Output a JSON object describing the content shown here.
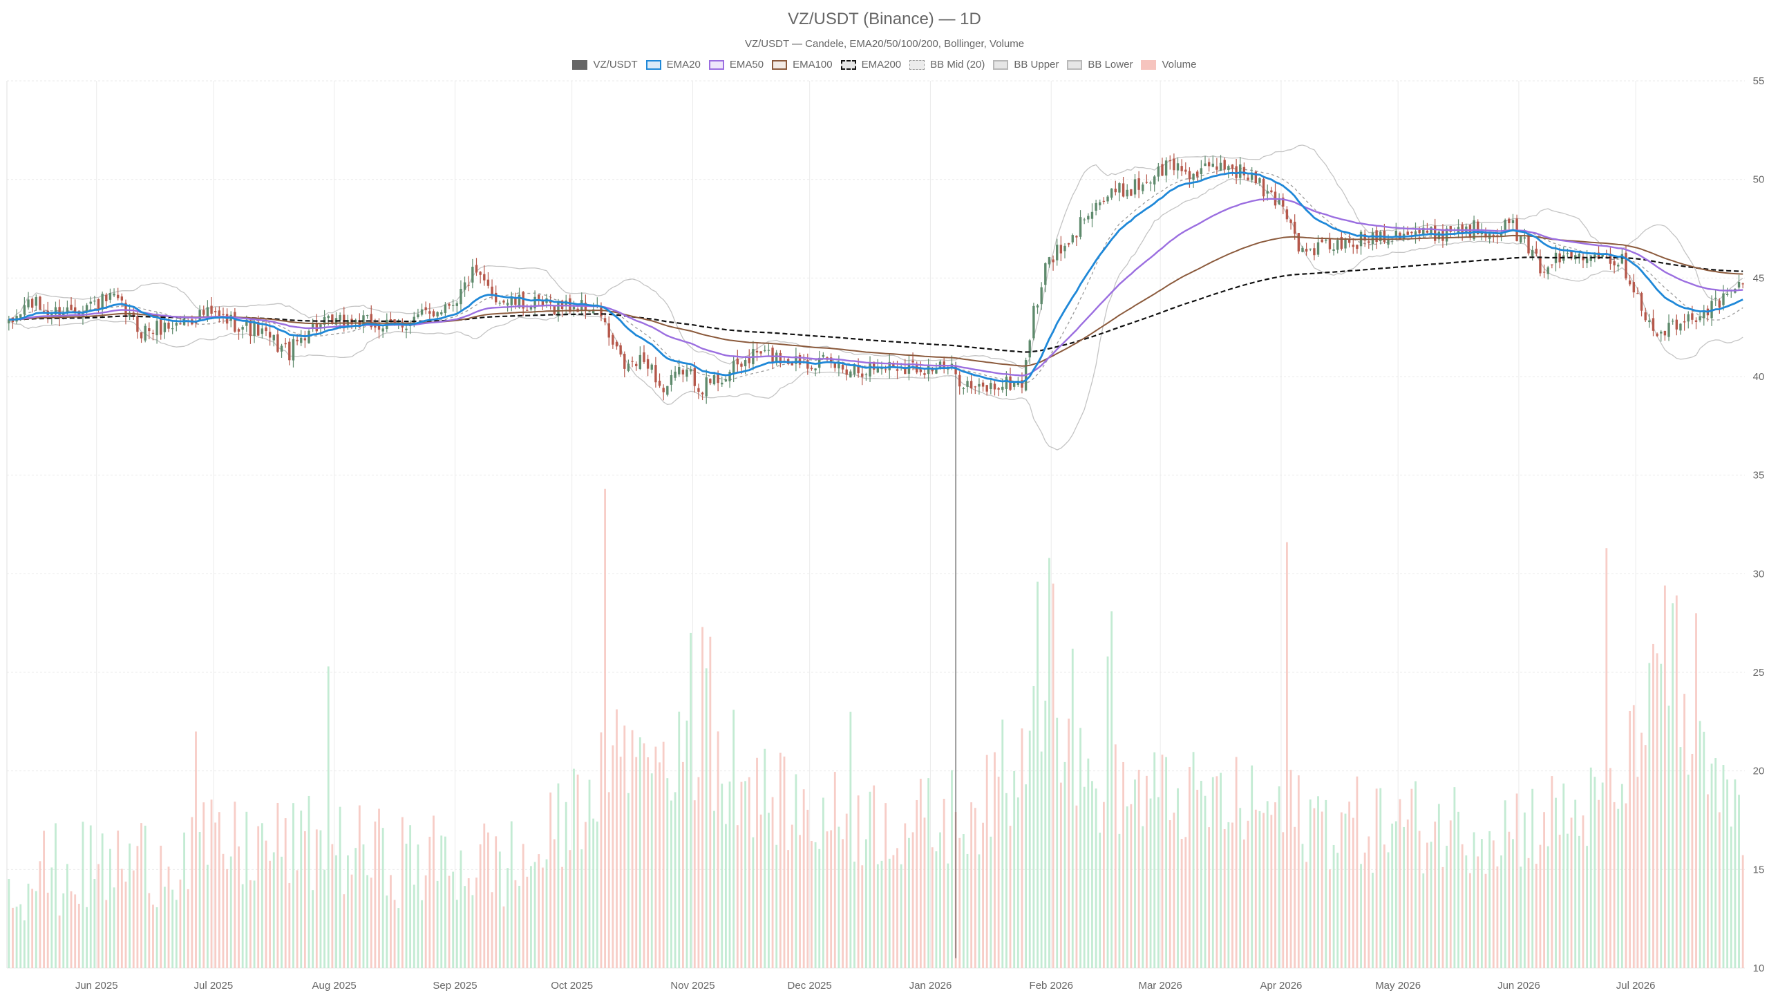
{
  "chart_data": {
    "type": "candlestick",
    "title": "VZ/USDT (Binance) — 1D",
    "subtitle": "VZ/USDT — Candele, EMA20/50/100/200, Bollinger, Volume",
    "y_axis": {
      "min": 10,
      "max": 55,
      "ticks": [
        10,
        15,
        20,
        25,
        30,
        35,
        40,
        45,
        50,
        55
      ],
      "position": "right"
    },
    "x_axis": {
      "start": "2025-05-09",
      "end": "2026-07-28",
      "ticks": [
        {
          "date": "2025-06-01",
          "label": "Jun 2025"
        },
        {
          "date": "2025-07-01",
          "label": "Jul 2025"
        },
        {
          "date": "2025-08-01",
          "label": "Aug 2025"
        },
        {
          "date": "2025-09-01",
          "label": "Sep 2025"
        },
        {
          "date": "2025-10-01",
          "label": "Oct 2025"
        },
        {
          "date": "2025-11-01",
          "label": "Nov 2025"
        },
        {
          "date": "2025-12-01",
          "label": "Dec 2025"
        },
        {
          "date": "2026-01-01",
          "label": "Jan 2026"
        },
        {
          "date": "2026-02-01",
          "label": "Feb 2026"
        },
        {
          "date": "2026-03-01",
          "label": "Mar 2026"
        },
        {
          "date": "2026-04-01",
          "label": "Apr 2026"
        },
        {
          "date": "2026-05-01",
          "label": "May 2026"
        },
        {
          "date": "2026-06-01",
          "label": "Jun 2026"
        },
        {
          "date": "2026-07-01",
          "label": "Jul 2026"
        }
      ]
    },
    "legend": [
      {
        "name": "VZ/USDT",
        "color": "#666666",
        "style": "filled"
      },
      {
        "name": "EMA20",
        "color": "#1f88d8",
        "style": "line"
      },
      {
        "name": "EMA50",
        "color": "#9b6ee0",
        "style": "line"
      },
      {
        "name": "EMA100",
        "color": "#8b5a3c",
        "style": "line"
      },
      {
        "name": "EMA200",
        "color": "#111111",
        "style": "dashed"
      },
      {
        "name": "BB Mid (20)",
        "color": "#9a9a9a",
        "style": "dotted"
      },
      {
        "name": "BB Upper",
        "color": "#b8b8b8",
        "style": "line"
      },
      {
        "name": "BB Lower",
        "color": "#b8b8b8",
        "style": "line"
      },
      {
        "name": "Volume",
        "color": "#f4b5ae",
        "style": "filled"
      }
    ],
    "colors": {
      "up": "#5e8a6c",
      "down": "#b5574a",
      "vol_up": "#b9e8cb",
      "vol_down": "#f6c4bd",
      "grid": "#ebebeb"
    },
    "price_anchors": [
      [
        "2025-05-09",
        42.5
      ],
      [
        "2025-05-14",
        43.8
      ],
      [
        "2025-05-20",
        43.2
      ],
      [
        "2025-05-28",
        43.6
      ],
      [
        "2025-06-05",
        43.9
      ],
      [
        "2025-06-12",
        42.3
      ],
      [
        "2025-06-20",
        42.6
      ],
      [
        "2025-06-28",
        43.2
      ],
      [
        "2025-07-05",
        42.8
      ],
      [
        "2025-07-12",
        42.3
      ],
      [
        "2025-07-20",
        41.2
      ],
      [
        "2025-07-25",
        42.5
      ],
      [
        "2025-08-05",
        42.8
      ],
      [
        "2025-08-15",
        42.5
      ],
      [
        "2025-08-25",
        43.2
      ],
      [
        "2025-09-01",
        44.0
      ],
      [
        "2025-09-05",
        45.2
      ],
      [
        "2025-09-12",
        43.9
      ],
      [
        "2025-09-20",
        43.6
      ],
      [
        "2025-09-28",
        43.6
      ],
      [
        "2025-10-05",
        43.5
      ],
      [
        "2025-10-08",
        43.2
      ],
      [
        "2025-10-10",
        41.9
      ],
      [
        "2025-10-14",
        40.5
      ],
      [
        "2025-10-20",
        40.8
      ],
      [
        "2025-10-24",
        39.2
      ],
      [
        "2025-10-29",
        40.4
      ],
      [
        "2025-11-03",
        39.5
      ],
      [
        "2025-11-10",
        40.2
      ],
      [
        "2025-11-17",
        41.2
      ],
      [
        "2025-11-24",
        40.9
      ],
      [
        "2025-12-01",
        40.8
      ],
      [
        "2025-12-08",
        40.5
      ],
      [
        "2025-12-15",
        40.4
      ],
      [
        "2025-12-22",
        40.6
      ],
      [
        "2025-12-29",
        40.5
      ],
      [
        "2026-01-05",
        40.4
      ],
      [
        "2026-01-12",
        39.3
      ],
      [
        "2026-01-19",
        39.6
      ],
      [
        "2026-01-24",
        39.7
      ],
      [
        "2026-01-27",
        43.2
      ],
      [
        "2026-01-31",
        46.1
      ],
      [
        "2026-02-05",
        46.5
      ],
      [
        "2026-02-10",
        48.6
      ],
      [
        "2026-02-17",
        49.3
      ],
      [
        "2026-02-24",
        49.8
      ],
      [
        "2026-03-03",
        50.8
      ],
      [
        "2026-03-10",
        50.2
      ],
      [
        "2026-03-17",
        50.8
      ],
      [
        "2026-03-24",
        50.1
      ],
      [
        "2026-03-28",
        49.2
      ],
      [
        "2026-04-01",
        48.8
      ],
      [
        "2026-04-06",
        46.2
      ],
      [
        "2026-04-11",
        46.6
      ],
      [
        "2026-04-18",
        46.7
      ],
      [
        "2026-04-25",
        47.2
      ],
      [
        "2026-05-02",
        47.4
      ],
      [
        "2026-05-09",
        47.2
      ],
      [
        "2026-05-16",
        47.5
      ],
      [
        "2026-05-23",
        47.5
      ],
      [
        "2026-05-30",
        47.6
      ],
      [
        "2026-06-03",
        46.3
      ],
      [
        "2026-06-06",
        45.6
      ],
      [
        "2026-06-13",
        46.1
      ],
      [
        "2026-06-20",
        46.5
      ],
      [
        "2026-06-27",
        45.8
      ],
      [
        "2026-07-01",
        44.2
      ],
      [
        "2026-07-05",
        42.1
      ],
      [
        "2026-07-12",
        42.6
      ],
      [
        "2026-07-18",
        43.4
      ],
      [
        "2026-07-24",
        44.0
      ],
      [
        "2026-07-28",
        44.8
      ]
    ],
    "volume_anchors": [
      [
        "2025-05-09",
        14.5
      ],
      [
        "2025-06-01",
        14.8
      ],
      [
        "2025-06-30",
        15.8
      ],
      [
        "2025-07-25",
        16.0
      ],
      [
        "2025-08-20",
        15.2
      ],
      [
        "2025-09-20",
        15.0
      ],
      [
        "2025-10-08",
        19.5
      ],
      [
        "2025-10-12",
        20.5
      ],
      [
        "2025-10-30",
        20.5
      ],
      [
        "2025-11-30",
        17.5
      ],
      [
        "2025-12-30",
        17.0
      ],
      [
        "2026-01-20",
        18.5
      ],
      [
        "2026-01-29",
        23.0
      ],
      [
        "2026-02-10",
        19.0
      ],
      [
        "2026-03-20",
        18.0
      ],
      [
        "2026-04-20",
        17.0
      ],
      [
        "2026-05-30",
        17.0
      ],
      [
        "2026-06-25",
        18.0
      ],
      [
        "2026-07-05",
        24.0
      ],
      [
        "2026-07-28",
        16.5
      ]
    ],
    "volume_spikes": [
      [
        "2025-06-26",
        22.0
      ],
      [
        "2025-07-30",
        25.3
      ],
      [
        "2025-10-09",
        34.3
      ],
      [
        "2025-10-11",
        21.3
      ],
      [
        "2025-10-14",
        22.3
      ],
      [
        "2025-10-31",
        27.0
      ],
      [
        "2025-11-03",
        27.3
      ],
      [
        "2025-11-04",
        25.2
      ],
      [
        "2025-11-05",
        26.8
      ],
      [
        "2025-11-11",
        23.1
      ],
      [
        "2025-12-11",
        23.0
      ],
      [
        "2026-01-19",
        22.6
      ],
      [
        "2026-01-27",
        24.3
      ],
      [
        "2026-01-28",
        29.6
      ],
      [
        "2026-01-31",
        30.8
      ],
      [
        "2026-02-01",
        29.5
      ],
      [
        "2026-02-06",
        26.2
      ],
      [
        "2026-02-15",
        25.8
      ],
      [
        "2026-02-16",
        28.1
      ],
      [
        "2026-04-02",
        31.6
      ],
      [
        "2026-06-23",
        31.3
      ],
      [
        "2026-07-08",
        29.4
      ],
      [
        "2026-07-10",
        28.5
      ],
      [
        "2026-07-11",
        28.9
      ],
      [
        "2026-07-16",
        28.0
      ]
    ],
    "down_days_hint": [
      "2025-10-09",
      "2026-07-03",
      "2026-06-06"
    ],
    "long_wick": {
      "date": "2026-01-07",
      "high": 40.5,
      "low": 10.5
    }
  }
}
